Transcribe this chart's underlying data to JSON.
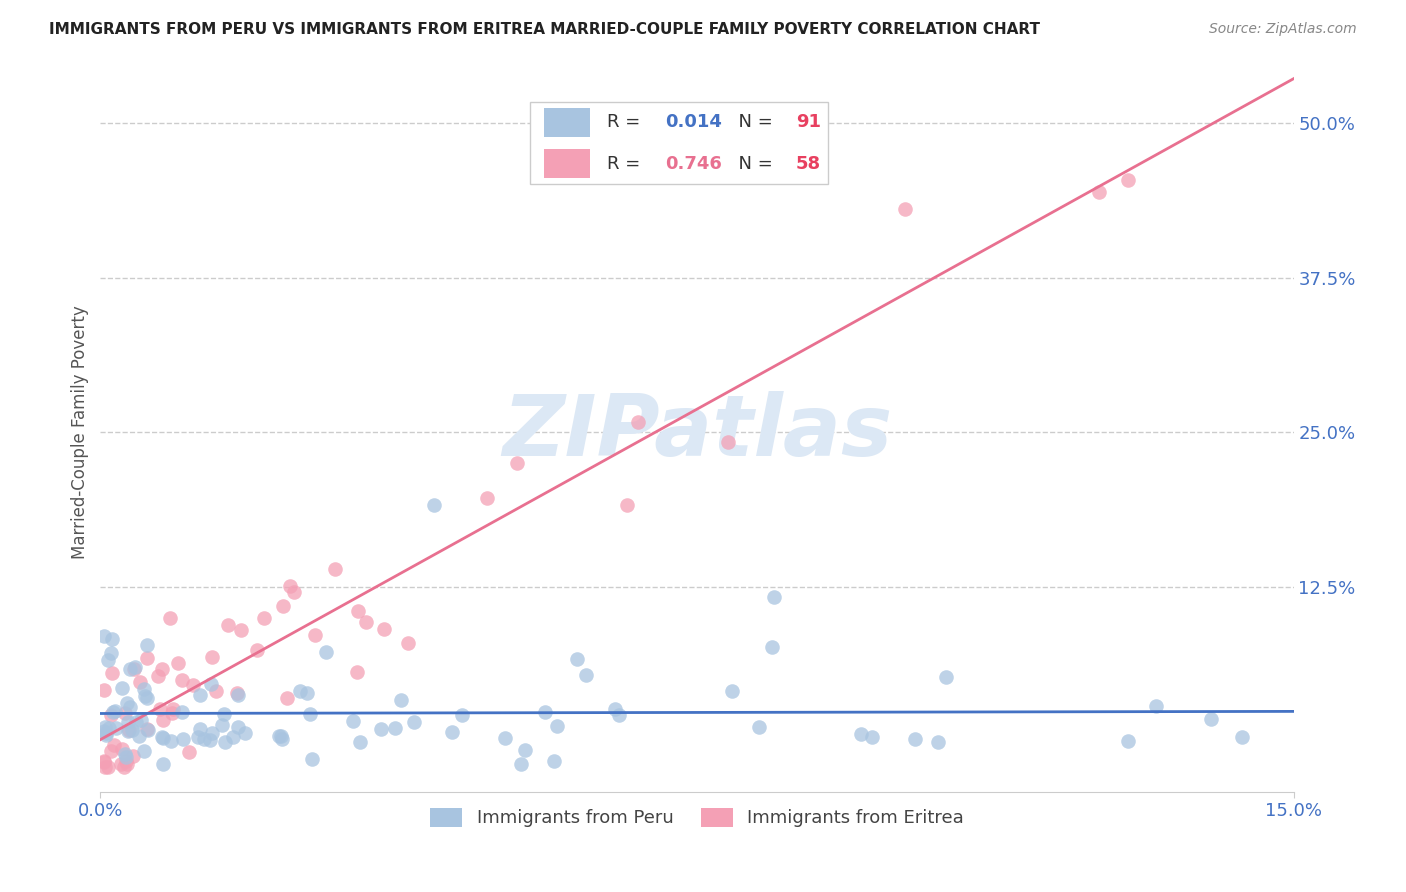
{
  "title": "IMMIGRANTS FROM PERU VS IMMIGRANTS FROM ERITREA MARRIED-COUPLE FAMILY POVERTY CORRELATION CHART",
  "source": "Source: ZipAtlas.com",
  "ylabel": "Married-Couple Family Poverty",
  "ytick_labels": [
    "50.0%",
    "37.5%",
    "25.0%",
    "12.5%"
  ],
  "ytick_values": [
    0.5,
    0.375,
    0.25,
    0.125
  ],
  "xtick_labels": [
    "0.0%",
    "15.0%"
  ],
  "xtick_values": [
    0.0,
    0.15
  ],
  "xlim": [
    0.0,
    0.15
  ],
  "ylim": [
    -0.04,
    0.54
  ],
  "legend_peru_R": "0.014",
  "legend_peru_N": "91",
  "legend_eritrea_R": "0.746",
  "legend_eritrea_N": "58",
  "color_peru": "#a8c4e0",
  "color_eritrea": "#f4a0b5",
  "color_peru_line": "#4472c4",
  "color_eritrea_line": "#e87090",
  "color_axis_label": "#4472c4",
  "color_title": "#222222",
  "color_source": "#888888",
  "watermark": "ZIPatlas",
  "watermark_color": "#dce8f5",
  "background_color": "#ffffff",
  "grid_color": "#cccccc",
  "peru_line_slope": 0.05,
  "peru_line_intercept": 0.055,
  "eritrea_line_slope": 3.3,
  "eritrea_line_intercept": 0.01
}
